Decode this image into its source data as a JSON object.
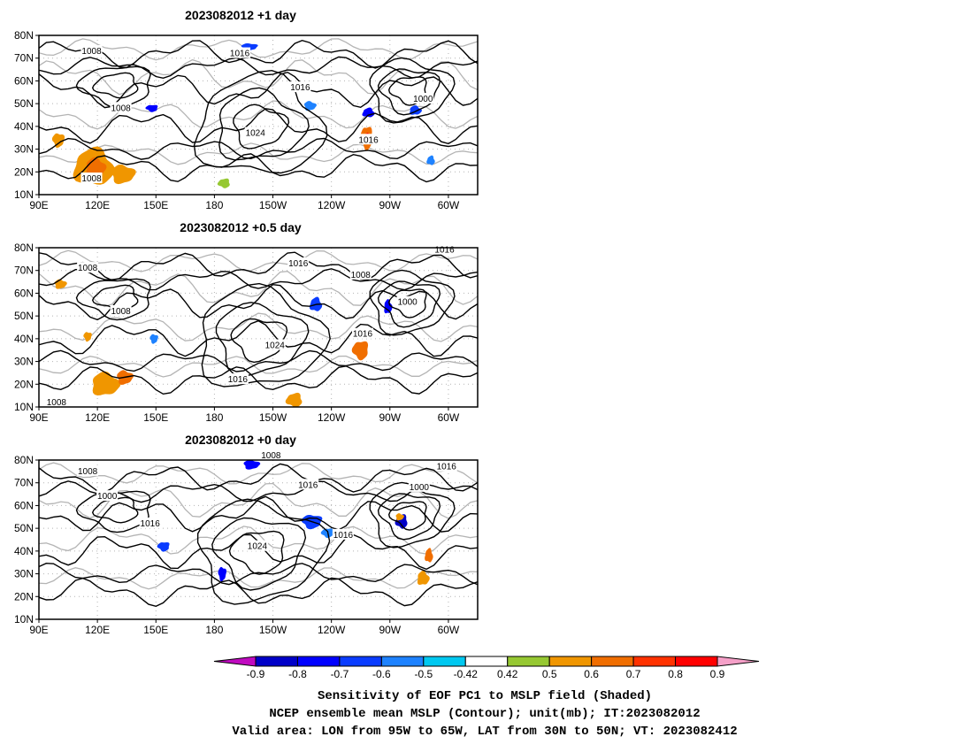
{
  "panels": [
    {
      "title": "2023082012  +1 day",
      "contour_labels": [
        {
          "text": "1008",
          "lon": 117,
          "lat": 73
        },
        {
          "text": "1008",
          "lon": 132,
          "lat": 48
        },
        {
          "text": "1016",
          "lon": -167,
          "lat": 72
        },
        {
          "text": "1016",
          "lon": -136,
          "lat": 57
        },
        {
          "text": "1024",
          "lon": -159,
          "lat": 37
        },
        {
          "text": "1016",
          "lon": -101,
          "lat": 34
        },
        {
          "text": "1000",
          "lon": -73,
          "lat": 52
        },
        {
          "text": "1008",
          "lon": 117,
          "lat": 17
        }
      ],
      "shading": [
        {
          "lon": 118,
          "lat": 22,
          "rx": 10,
          "ry": 8,
          "level": 0.6
        },
        {
          "lon": 119,
          "lat": 22,
          "rx": 5,
          "ry": 4,
          "level": 0.7
        },
        {
          "lon": 133,
          "lat": 19,
          "rx": 6,
          "ry": 4,
          "level": 0.6
        },
        {
          "lon": 100,
          "lat": 34,
          "rx": 3,
          "ry": 3,
          "level": 0.6
        },
        {
          "lon": -102,
          "lat": 35,
          "rx": 3,
          "ry": 5,
          "level": 0.7
        },
        {
          "lon": -102,
          "lat": 35,
          "rx": 1.5,
          "ry": 2,
          "level": 0.9
        },
        {
          "lon": -101,
          "lat": 46,
          "rx": 3,
          "ry": 2,
          "level": -0.7
        },
        {
          "lon": -77,
          "lat": 47,
          "rx": 3,
          "ry": 2,
          "level": -0.6
        },
        {
          "lon": -131,
          "lat": 49,
          "rx": 3,
          "ry": 2,
          "level": -0.5
        },
        {
          "lon": -162,
          "lat": 75,
          "rx": 4,
          "ry": 1.5,
          "level": -0.6
        },
        {
          "lon": 148,
          "lat": 48,
          "rx": 3,
          "ry": 1.5,
          "level": -0.7
        },
        {
          "lon": -175,
          "lat": 15,
          "rx": 3,
          "ry": 2,
          "level": 0.5
        },
        {
          "lon": -69,
          "lat": 25,
          "rx": 2,
          "ry": 2,
          "level": -0.5
        }
      ]
    },
    {
      "title": "2023082012  +0.5 day",
      "contour_labels": [
        {
          "text": "1008",
          "lon": 115,
          "lat": 71
        },
        {
          "text": "1016",
          "lon": -137,
          "lat": 73
        },
        {
          "text": "1008",
          "lon": -105,
          "lat": 68
        },
        {
          "text": "1008",
          "lon": 132,
          "lat": 52
        },
        {
          "text": "1024",
          "lon": -149,
          "lat": 37
        },
        {
          "text": "1016",
          "lon": -104,
          "lat": 42
        },
        {
          "text": "1000",
          "lon": -81,
          "lat": 56
        },
        {
          "text": "1016",
          "lon": -168,
          "lat": 22
        },
        {
          "text": "1016",
          "lon": -62,
          "lat": 79
        },
        {
          "text": "1008",
          "lon": 99,
          "lat": 12
        }
      ],
      "shading": [
        {
          "lon": 124,
          "lat": 20,
          "rx": 7,
          "ry": 5,
          "level": 0.6
        },
        {
          "lon": 134,
          "lat": 23,
          "rx": 4,
          "ry": 3,
          "level": 0.7
        },
        {
          "lon": 115,
          "lat": 41,
          "rx": 2,
          "ry": 2,
          "level": 0.6
        },
        {
          "lon": -105,
          "lat": 35,
          "rx": 4,
          "ry": 4,
          "level": 0.7
        },
        {
          "lon": -139,
          "lat": 13,
          "rx": 4,
          "ry": 3,
          "level": 0.6
        },
        {
          "lon": -128,
          "lat": 55,
          "rx": 3,
          "ry": 3,
          "level": -0.6
        },
        {
          "lon": -91,
          "lat": 54,
          "rx": 2,
          "ry": 3,
          "level": -0.7
        },
        {
          "lon": 101,
          "lat": 64,
          "rx": 3,
          "ry": 2,
          "level": 0.6
        },
        {
          "lon": 149,
          "lat": 40,
          "rx": 2,
          "ry": 2,
          "level": -0.5
        }
      ]
    },
    {
      "title": "2023082012  +0 day",
      "contour_labels": [
        {
          "text": "1008",
          "lon": 115,
          "lat": 75
        },
        {
          "text": "1000",
          "lon": 125,
          "lat": 64
        },
        {
          "text": "1016",
          "lon": 147,
          "lat": 52
        },
        {
          "text": "1008",
          "lon": -151,
          "lat": 82
        },
        {
          "text": "1016",
          "lon": -132,
          "lat": 69
        },
        {
          "text": "1024",
          "lon": -158,
          "lat": 42
        },
        {
          "text": "1016",
          "lon": -114,
          "lat": 47
        },
        {
          "text": "1000",
          "lon": -75,
          "lat": 68
        },
        {
          "text": "1016",
          "lon": -61,
          "lat": 77
        }
      ],
      "shading": [
        {
          "lon": -161,
          "lat": 78,
          "rx": 4,
          "ry": 2,
          "level": -0.7
        },
        {
          "lon": -130,
          "lat": 53,
          "rx": 5,
          "ry": 3,
          "level": -0.6
        },
        {
          "lon": -122,
          "lat": 48,
          "rx": 3,
          "ry": 2,
          "level": -0.5
        },
        {
          "lon": -84,
          "lat": 53,
          "rx": 3,
          "ry": 3,
          "level": -0.8
        },
        {
          "lon": -70,
          "lat": 38,
          "rx": 2,
          "ry": 3,
          "level": 0.7
        },
        {
          "lon": -73,
          "lat": 28,
          "rx": 3,
          "ry": 3,
          "level": 0.6
        },
        {
          "lon": -85,
          "lat": 55,
          "rx": 2,
          "ry": 1.5,
          "level": 0.6
        },
        {
          "lon": -176,
          "lat": 30,
          "rx": 2,
          "ry": 3,
          "level": -0.7
        },
        {
          "lon": 154,
          "lat": 42,
          "rx": 3,
          "ry": 2,
          "level": -0.6
        }
      ]
    }
  ],
  "lon_ticks": [
    {
      "lon": 90,
      "label": "90E"
    },
    {
      "lon": 120,
      "label": "120E"
    },
    {
      "lon": 150,
      "label": "150E"
    },
    {
      "lon": 180,
      "label": "180"
    },
    {
      "lon": -150,
      "label": "150W"
    },
    {
      "lon": -120,
      "label": "120W"
    },
    {
      "lon": -90,
      "label": "90W"
    },
    {
      "lon": -60,
      "label": "60W"
    }
  ],
  "lat_ticks": [
    {
      "lat": 10,
      "label": "10N"
    },
    {
      "lat": 20,
      "label": "20N"
    },
    {
      "lat": 30,
      "label": "30N"
    },
    {
      "lat": 40,
      "label": "40N"
    },
    {
      "lat": 50,
      "label": "50N"
    },
    {
      "lat": 60,
      "label": "60N"
    },
    {
      "lat": 70,
      "label": "70N"
    },
    {
      "lat": 80,
      "label": "80N"
    }
  ],
  "colorbar": {
    "labels": [
      "-0.9",
      "-0.8",
      "-0.7",
      "-0.6",
      "-0.5",
      "-0.42",
      "0.42",
      "0.5",
      "0.6",
      "0.7",
      "0.8",
      "0.9"
    ],
    "colors": [
      "#c00ac0",
      "#0000c8",
      "#0000ff",
      "#0a3cff",
      "#1e82ff",
      "#00c8f0",
      "#ffffff",
      "#96c832",
      "#f09600",
      "#f06e00",
      "#ff3200",
      "#ff0000",
      "#f5a0c8"
    ]
  },
  "captions": [
    "Sensitivity of EOF PC1 to MSLP field (Shaded)",
    "NCEP ensemble mean MSLP (Contour); unit(mb); IT:2023082012",
    "Valid area: LON from 95W to 65W, LAT from 30N to 50N; VT: 2023082412"
  ]
}
